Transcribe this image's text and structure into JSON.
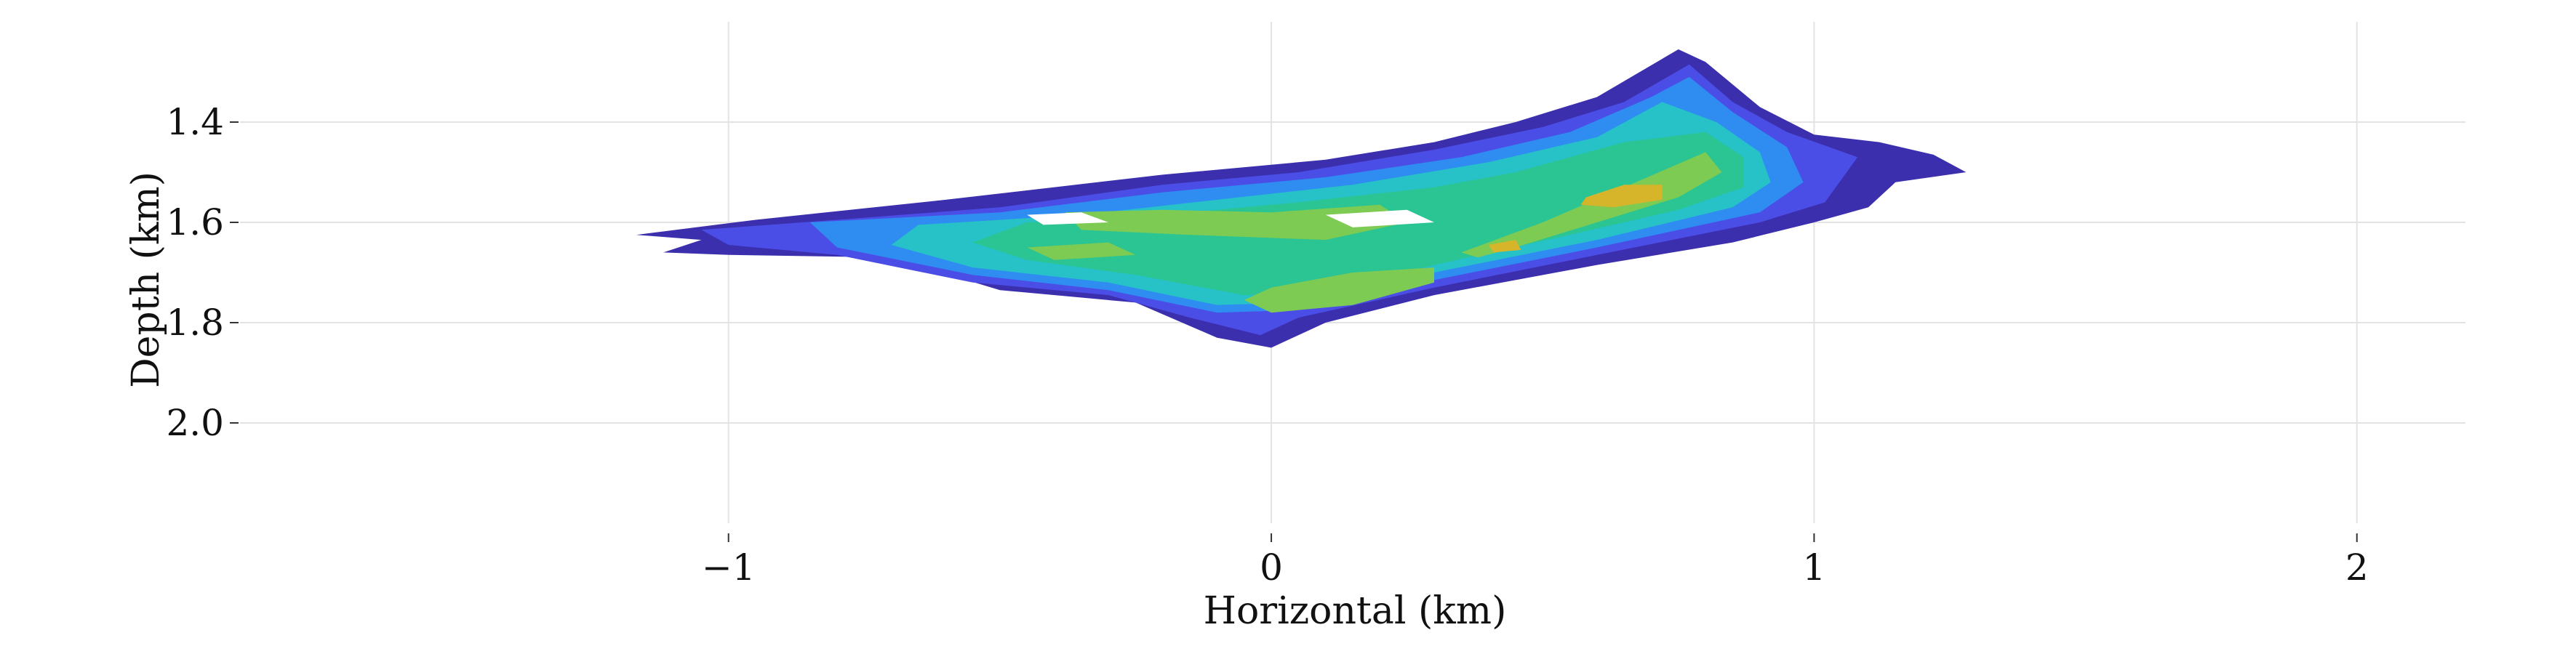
{
  "chart_data": {
    "type": "heatmap",
    "title": "",
    "xlabel": "Horizontal (km)",
    "ylabel": "Depth (km)",
    "xlim": [
      -1.9,
      2.2
    ],
    "ylim": [
      2.2,
      1.2
    ],
    "y_inverted": true,
    "grid": true,
    "x_ticks": [
      {
        "value": -1,
        "label": "−1"
      },
      {
        "value": 0,
        "label": "0"
      },
      {
        "value": 1,
        "label": "1"
      },
      {
        "value": 2,
        "label": "2"
      }
    ],
    "y_ticks": [
      {
        "value": 1.4,
        "label": "1.4"
      },
      {
        "value": 1.6,
        "label": "1.6"
      },
      {
        "value": 1.8,
        "label": "1.8"
      },
      {
        "value": 2.0,
        "label": "2.0"
      }
    ],
    "colormap_levels": [
      "#3b2fae",
      "#4b4ee6",
      "#2f8cf0",
      "#26c2c8",
      "#2bc493",
      "#7dcb53",
      "#d7b52a"
    ],
    "contour_regions": [
      {
        "level": 0,
        "points": [
          [
            -1.17,
            1.625
          ],
          [
            -0.95,
            1.595
          ],
          [
            -0.6,
            1.555
          ],
          [
            -0.2,
            1.505
          ],
          [
            0.1,
            1.475
          ],
          [
            0.3,
            1.44
          ],
          [
            0.45,
            1.4
          ],
          [
            0.6,
            1.35
          ],
          [
            0.75,
            1.255
          ],
          [
            0.8,
            1.28
          ],
          [
            0.9,
            1.37
          ],
          [
            1.0,
            1.425
          ],
          [
            1.12,
            1.44
          ],
          [
            1.22,
            1.465
          ],
          [
            1.28,
            1.5
          ],
          [
            1.15,
            1.52
          ],
          [
            1.1,
            1.57
          ],
          [
            1.0,
            1.6
          ],
          [
            0.85,
            1.64
          ],
          [
            0.6,
            1.685
          ],
          [
            0.3,
            1.745
          ],
          [
            0.1,
            1.8
          ],
          [
            0.0,
            1.85
          ],
          [
            -0.1,
            1.83
          ],
          [
            -0.25,
            1.76
          ],
          [
            -0.5,
            1.735
          ],
          [
            -0.7,
            1.67
          ],
          [
            -1.0,
            1.665
          ],
          [
            -1.12,
            1.66
          ],
          [
            -1.05,
            1.635
          ]
        ]
      },
      {
        "level": 1,
        "points": [
          [
            -1.05,
            1.615
          ],
          [
            -0.8,
            1.595
          ],
          [
            -0.5,
            1.57
          ],
          [
            -0.2,
            1.525
          ],
          [
            0.05,
            1.5
          ],
          [
            0.3,
            1.455
          ],
          [
            0.5,
            1.41
          ],
          [
            0.65,
            1.36
          ],
          [
            0.77,
            1.285
          ],
          [
            0.85,
            1.36
          ],
          [
            0.95,
            1.42
          ],
          [
            1.08,
            1.47
          ],
          [
            1.02,
            1.56
          ],
          [
            0.9,
            1.6
          ],
          [
            0.6,
            1.665
          ],
          [
            0.3,
            1.73
          ],
          [
            0.05,
            1.79
          ],
          [
            -0.02,
            1.825
          ],
          [
            -0.15,
            1.79
          ],
          [
            -0.3,
            1.745
          ],
          [
            -0.55,
            1.72
          ],
          [
            -0.8,
            1.665
          ],
          [
            -1.0,
            1.645
          ]
        ]
      },
      {
        "level": 2,
        "points": [
          [
            -0.85,
            1.6
          ],
          [
            -0.5,
            1.58
          ],
          [
            -0.2,
            1.54
          ],
          [
            0.1,
            1.51
          ],
          [
            0.35,
            1.47
          ],
          [
            0.55,
            1.42
          ],
          [
            0.7,
            1.35
          ],
          [
            0.77,
            1.31
          ],
          [
            0.85,
            1.38
          ],
          [
            0.95,
            1.45
          ],
          [
            0.98,
            1.52
          ],
          [
            0.9,
            1.58
          ],
          [
            0.6,
            1.65
          ],
          [
            0.3,
            1.715
          ],
          [
            0.05,
            1.775
          ],
          [
            -0.1,
            1.78
          ],
          [
            -0.3,
            1.735
          ],
          [
            -0.55,
            1.705
          ],
          [
            -0.8,
            1.65
          ]
        ]
      },
      {
        "level": 3,
        "points": [
          [
            -0.65,
            1.605
          ],
          [
            -0.35,
            1.585
          ],
          [
            -0.1,
            1.555
          ],
          [
            0.15,
            1.525
          ],
          [
            0.4,
            1.48
          ],
          [
            0.6,
            1.43
          ],
          [
            0.72,
            1.36
          ],
          [
            0.82,
            1.4
          ],
          [
            0.9,
            1.46
          ],
          [
            0.92,
            1.52
          ],
          [
            0.85,
            1.57
          ],
          [
            0.6,
            1.635
          ],
          [
            0.3,
            1.7
          ],
          [
            0.05,
            1.76
          ],
          [
            -0.1,
            1.765
          ],
          [
            -0.3,
            1.72
          ],
          [
            -0.55,
            1.69
          ],
          [
            -0.7,
            1.645
          ]
        ]
      },
      {
        "level": 4,
        "points": [
          [
            -0.45,
            1.6
          ],
          [
            -0.2,
            1.585
          ],
          [
            0.05,
            1.56
          ],
          [
            0.3,
            1.53
          ],
          [
            0.45,
            1.5
          ],
          [
            0.65,
            1.44
          ],
          [
            0.8,
            1.42
          ],
          [
            0.87,
            1.47
          ],
          [
            0.87,
            1.53
          ],
          [
            0.75,
            1.575
          ],
          [
            0.55,
            1.625
          ],
          [
            0.3,
            1.685
          ],
          [
            0.1,
            1.74
          ],
          [
            -0.05,
            1.745
          ],
          [
            -0.25,
            1.705
          ],
          [
            -0.45,
            1.675
          ],
          [
            -0.55,
            1.64
          ]
        ]
      },
      {
        "level": 5,
        "points": [
          [
            -0.38,
            1.58
          ],
          [
            -0.2,
            1.575
          ],
          [
            0.0,
            1.58
          ],
          [
            0.2,
            1.565
          ],
          [
            0.25,
            1.6
          ],
          [
            0.1,
            1.635
          ],
          [
            -0.15,
            1.625
          ],
          [
            -0.35,
            1.615
          ]
        ]
      },
      {
        "level": 5,
        "points": [
          [
            0.0,
            1.73
          ],
          [
            0.15,
            1.7
          ],
          [
            0.3,
            1.69
          ],
          [
            0.3,
            1.72
          ],
          [
            0.15,
            1.765
          ],
          [
            0.0,
            1.78
          ],
          [
            -0.05,
            1.755
          ]
        ]
      },
      {
        "level": 5,
        "points": [
          [
            0.35,
            1.66
          ],
          [
            0.5,
            1.6
          ],
          [
            0.65,
            1.53
          ],
          [
            0.8,
            1.46
          ],
          [
            0.83,
            1.5
          ],
          [
            0.75,
            1.55
          ],
          [
            0.6,
            1.6
          ],
          [
            0.45,
            1.65
          ],
          [
            0.38,
            1.67
          ]
        ]
      },
      {
        "level": 5,
        "points": [
          [
            -0.45,
            1.65
          ],
          [
            -0.3,
            1.64
          ],
          [
            -0.25,
            1.665
          ],
          [
            -0.4,
            1.675
          ]
        ]
      },
      {
        "level": 6,
        "points": [
          [
            0.58,
            1.55
          ],
          [
            0.65,
            1.525
          ],
          [
            0.72,
            1.525
          ],
          [
            0.72,
            1.555
          ],
          [
            0.63,
            1.57
          ],
          [
            0.57,
            1.565
          ]
        ]
      },
      {
        "level": 6,
        "points": [
          [
            0.4,
            1.645
          ],
          [
            0.45,
            1.635
          ],
          [
            0.46,
            1.655
          ],
          [
            0.41,
            1.66
          ]
        ]
      },
      {
        "level": 0,
        "points": [
          [
            -0.45,
            1.585
          ],
          [
            -0.35,
            1.58
          ],
          [
            -0.3,
            1.6
          ],
          [
            -0.42,
            1.605
          ]
        ]
      },
      {
        "level": 0,
        "points": [
          [
            0.1,
            1.585
          ],
          [
            0.25,
            1.575
          ],
          [
            0.3,
            1.6
          ],
          [
            0.15,
            1.61
          ]
        ]
      }
    ]
  }
}
